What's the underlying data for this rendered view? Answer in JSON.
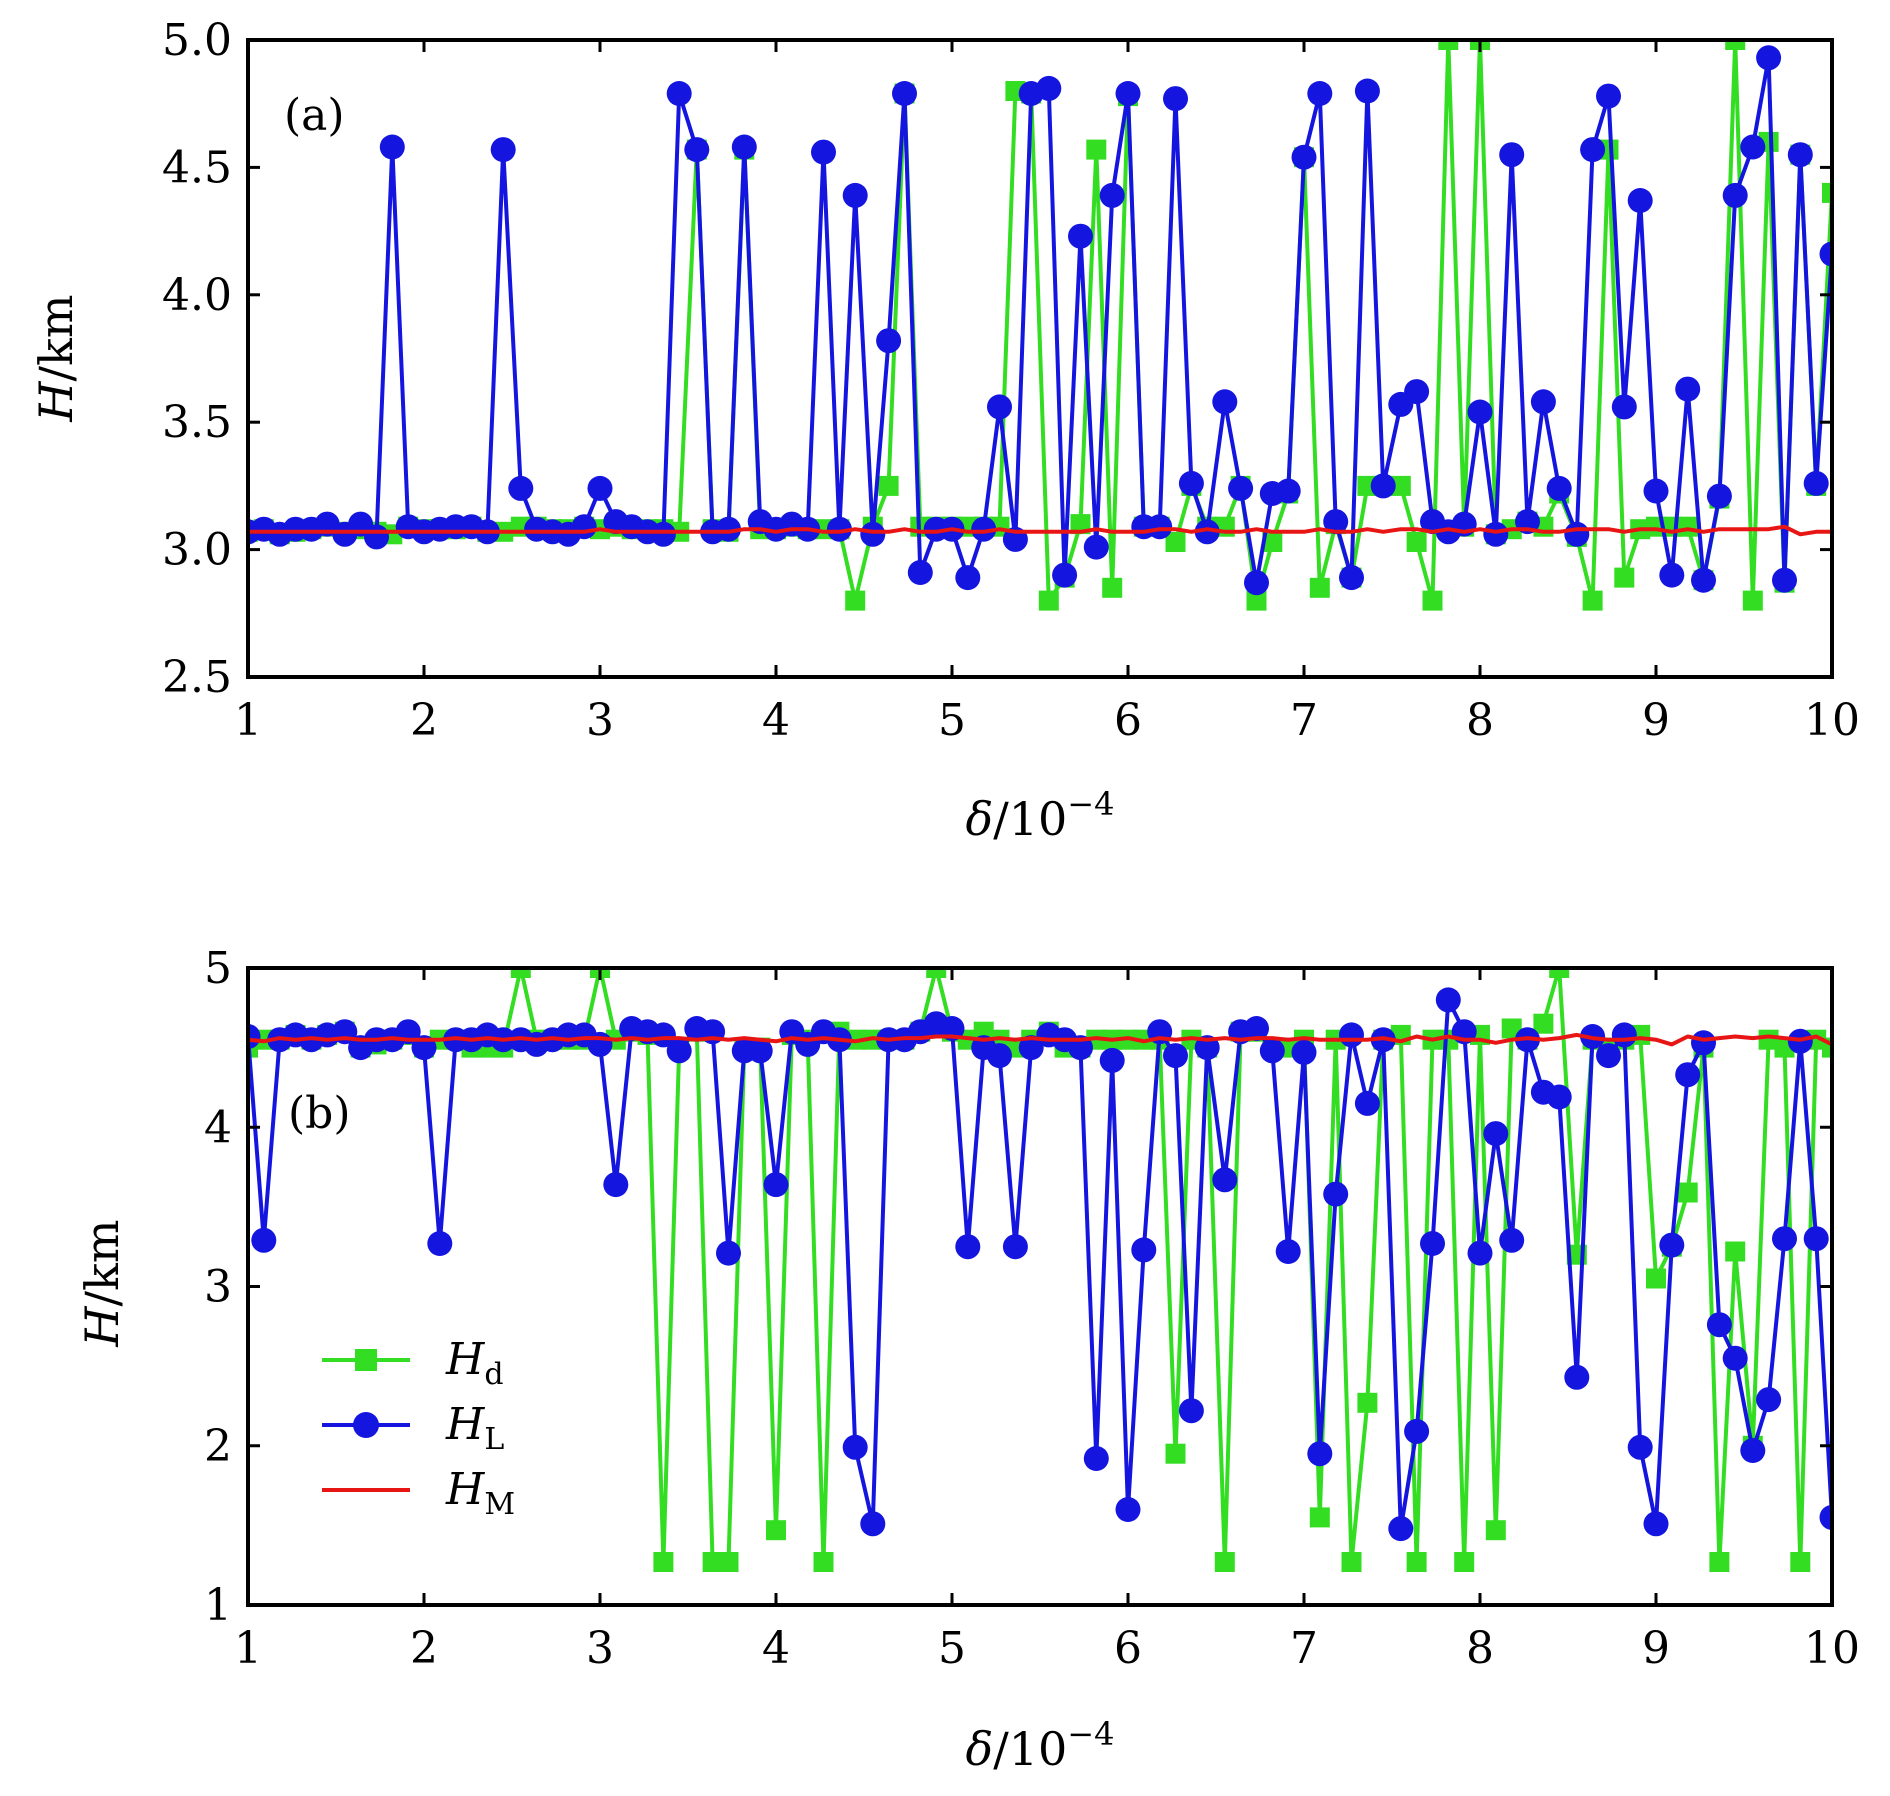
{
  "chart_data": [
    {
      "type": "line",
      "panel_label": "(a)",
      "ylabel": "H/km",
      "xlabel": "δ/10−4",
      "xlim": [
        1,
        10
      ],
      "ylim": [
        2.5,
        5.0
      ],
      "xtick_labels": [
        "1",
        "2",
        "3",
        "4",
        "5",
        "6",
        "7",
        "8",
        "9",
        "10"
      ],
      "ytick_labels": [
        "2.5",
        "3.0",
        "3.5",
        "4.0",
        "4.5",
        "5.0"
      ],
      "ytick_values": [
        2.5,
        3.0,
        3.5,
        4.0,
        4.5,
        5.0
      ],
      "x": [
        1.0,
        1.09,
        1.18,
        1.27,
        1.36,
        1.45,
        1.55,
        1.64,
        1.73,
        1.82,
        1.91,
        2.0,
        2.09,
        2.18,
        2.27,
        2.36,
        2.45,
        2.55,
        2.64,
        2.73,
        2.82,
        2.91,
        3.0,
        3.09,
        3.18,
        3.27,
        3.36,
        3.45,
        3.55,
        3.64,
        3.73,
        3.82,
        3.91,
        4.0,
        4.09,
        4.18,
        4.27,
        4.36,
        4.45,
        4.55,
        4.64,
        4.73,
        4.82,
        4.91,
        5.0,
        5.09,
        5.18,
        5.27,
        5.36,
        5.45,
        5.55,
        5.64,
        5.73,
        5.82,
        5.91,
        6.0,
        6.09,
        6.18,
        6.27,
        6.36,
        6.45,
        6.55,
        6.64,
        6.73,
        6.82,
        6.91,
        7.0,
        7.09,
        7.18,
        7.27,
        7.36,
        7.45,
        7.55,
        7.64,
        7.73,
        7.82,
        7.91,
        8.0,
        8.09,
        8.18,
        8.27,
        8.36,
        8.45,
        8.55,
        8.64,
        8.73,
        8.82,
        8.91,
        9.0,
        9.09,
        9.18,
        9.27,
        9.36,
        9.45,
        9.55,
        9.64,
        9.73,
        9.82,
        9.91,
        10.0
      ],
      "series": [
        {
          "name": "H",
          "subscript": "d",
          "color": "#33dd22",
          "marker": "square",
          "values": [
            3.07,
            3.08,
            3.06,
            3.07,
            3.08,
            3.09,
            3.07,
            3.08,
            3.07,
            3.06,
            3.09,
            3.08,
            3.08,
            3.08,
            3.09,
            3.07,
            3.07,
            3.09,
            3.09,
            3.08,
            3.08,
            3.09,
            3.08,
            3.09,
            3.08,
            3.08,
            3.08,
            3.07,
            4.57,
            3.08,
            3.07,
            4.57,
            3.08,
            3.08,
            3.09,
            3.08,
            3.08,
            3.08,
            2.8,
            3.09,
            3.25,
            4.79,
            3.09,
            3.09,
            3.09,
            3.09,
            3.09,
            3.09,
            4.8,
            4.79,
            2.8,
            2.89,
            3.1,
            4.57,
            2.85,
            4.78,
            3.09,
            3.09,
            3.03,
            3.25,
            3.09,
            3.09,
            3.25,
            2.8,
            3.03,
            3.22,
            4.54,
            2.85,
            3.1,
            2.89,
            3.25,
            3.25,
            3.25,
            3.03,
            2.8,
            5.0,
            3.09,
            5.0,
            3.06,
            3.08,
            3.11,
            3.09,
            3.22,
            3.05,
            2.8,
            4.57,
            2.89,
            3.08,
            3.09,
            3.09,
            3.09,
            2.88,
            3.2,
            5.0,
            2.8,
            4.6,
            2.87,
            4.55,
            3.25,
            4.4
          ]
        },
        {
          "name": "H",
          "subscript": "L",
          "color": "#1515e0",
          "marker": "circle",
          "values": [
            3.07,
            3.08,
            3.06,
            3.08,
            3.08,
            3.1,
            3.06,
            3.1,
            3.05,
            4.58,
            3.09,
            3.07,
            3.08,
            3.09,
            3.09,
            3.07,
            4.57,
            3.24,
            3.08,
            3.07,
            3.06,
            3.09,
            3.24,
            3.11,
            3.09,
            3.07,
            3.06,
            4.79,
            4.57,
            3.07,
            3.08,
            4.58,
            3.11,
            3.08,
            3.1,
            3.08,
            4.56,
            3.08,
            4.39,
            3.06,
            3.82,
            4.79,
            2.91,
            3.08,
            3.08,
            2.89,
            3.08,
            3.56,
            3.04,
            4.79,
            4.81,
            2.9,
            4.23,
            3.01,
            4.39,
            4.79,
            3.09,
            3.09,
            4.77,
            3.26,
            3.07,
            3.58,
            3.24,
            2.87,
            3.22,
            3.23,
            4.54,
            4.79,
            3.11,
            2.89,
            4.8,
            3.25,
            3.57,
            3.62,
            3.11,
            3.07,
            3.1,
            3.54,
            3.06,
            4.55,
            3.11,
            3.58,
            3.24,
            3.06,
            4.57,
            4.78,
            3.56,
            4.37,
            3.23,
            2.9,
            3.63,
            2.88,
            3.21,
            4.39,
            4.58,
            4.93,
            2.88,
            4.55,
            3.26,
            4.16
          ]
        },
        {
          "name": "H",
          "subscript": "M",
          "color": "#e81515",
          "marker": "none",
          "values": [
            3.07,
            3.07,
            3.07,
            3.07,
            3.07,
            3.07,
            3.07,
            3.07,
            3.07,
            3.07,
            3.07,
            3.07,
            3.07,
            3.07,
            3.07,
            3.07,
            3.07,
            3.07,
            3.07,
            3.07,
            3.07,
            3.07,
            3.08,
            3.07,
            3.07,
            3.07,
            3.07,
            3.07,
            3.07,
            3.07,
            3.07,
            3.08,
            3.08,
            3.07,
            3.08,
            3.08,
            3.07,
            3.07,
            3.08,
            3.07,
            3.07,
            3.08,
            3.07,
            3.07,
            3.08,
            3.07,
            3.07,
            3.08,
            3.07,
            3.07,
            3.07,
            3.07,
            3.07,
            3.08,
            3.07,
            3.07,
            3.07,
            3.08,
            3.08,
            3.07,
            3.08,
            3.07,
            3.07,
            3.08,
            3.07,
            3.07,
            3.07,
            3.08,
            3.07,
            3.07,
            3.08,
            3.07,
            3.08,
            3.08,
            3.07,
            3.08,
            3.07,
            3.08,
            3.07,
            3.08,
            3.08,
            3.07,
            3.07,
            3.08,
            3.08,
            3.08,
            3.07,
            3.08,
            3.08,
            3.07,
            3.08,
            3.07,
            3.08,
            3.08,
            3.08,
            3.08,
            3.09,
            3.06,
            3.07,
            3.07
          ]
        }
      ]
    },
    {
      "type": "line",
      "panel_label": "(b)",
      "ylabel": "H/km",
      "xlabel": "δ/10−4",
      "xlim": [
        1,
        10
      ],
      "ylim": [
        1,
        5
      ],
      "xtick_labels": [
        "1",
        "2",
        "3",
        "4",
        "5",
        "6",
        "7",
        "8",
        "9",
        "10"
      ],
      "ytick_labels": [
        "1",
        "2",
        "3",
        "4",
        "5"
      ],
      "ytick_values": [
        1,
        2,
        3,
        4,
        5
      ],
      "legend_position": "lower-left",
      "x": [
        1.0,
        1.09,
        1.18,
        1.27,
        1.36,
        1.45,
        1.55,
        1.64,
        1.73,
        1.82,
        1.91,
        2.0,
        2.09,
        2.18,
        2.27,
        2.36,
        2.45,
        2.55,
        2.64,
        2.73,
        2.82,
        2.91,
        3.0,
        3.09,
        3.18,
        3.27,
        3.36,
        3.45,
        3.55,
        3.64,
        3.73,
        3.82,
        3.91,
        4.0,
        4.09,
        4.18,
        4.27,
        4.36,
        4.45,
        4.55,
        4.64,
        4.73,
        4.82,
        4.91,
        5.0,
        5.09,
        5.18,
        5.27,
        5.36,
        5.45,
        5.55,
        5.64,
        5.73,
        5.82,
        5.91,
        6.0,
        6.09,
        6.18,
        6.27,
        6.36,
        6.45,
        6.55,
        6.64,
        6.73,
        6.82,
        6.91,
        7.0,
        7.09,
        7.18,
        7.27,
        7.36,
        7.45,
        7.55,
        7.64,
        7.73,
        7.82,
        7.91,
        8.0,
        8.09,
        8.18,
        8.27,
        8.36,
        8.45,
        8.55,
        8.64,
        8.73,
        8.82,
        8.91,
        9.0,
        9.09,
        9.18,
        9.27,
        9.36,
        9.45,
        9.55,
        9.64,
        9.73,
        9.82,
        9.91,
        10.0
      ],
      "series": [
        {
          "name": "H",
          "subscript": "d",
          "color": "#33dd22",
          "marker": "square",
          "values": [
            4.5,
            4.55,
            4.55,
            4.58,
            4.55,
            4.58,
            4.6,
            4.5,
            4.52,
            4.55,
            4.58,
            4.5,
            4.55,
            4.55,
            4.5,
            4.5,
            4.5,
            5.0,
            4.55,
            4.55,
            4.55,
            4.55,
            5.0,
            4.55,
            4.6,
            4.58,
            1.27,
            4.5,
            4.6,
            1.27,
            1.27,
            4.5,
            4.5,
            1.47,
            4.58,
            4.55,
            1.27,
            4.6,
            4.55,
            4.55,
            4.55,
            4.55,
            4.6,
            5.0,
            4.6,
            4.55,
            4.6,
            4.55,
            4.5,
            4.55,
            4.6,
            4.5,
            4.5,
            4.55,
            4.55,
            4.55,
            4.55,
            4.55,
            1.95,
            4.55,
            4.5,
            1.27,
            4.6,
            4.6,
            4.5,
            4.5,
            4.55,
            1.55,
            4.55,
            1.27,
            2.27,
            4.55,
            4.58,
            1.27,
            4.55,
            4.55,
            1.27,
            4.58,
            1.47,
            4.62,
            4.55,
            4.65,
            5.0,
            3.2,
            4.55,
            4.5,
            4.55,
            4.58,
            3.05,
            3.25,
            3.59,
            4.5,
            1.27,
            3.22,
            2.0,
            4.55,
            4.5,
            1.27,
            4.55,
            4.5
          ]
        },
        {
          "name": "H",
          "subscript": "L",
          "color": "#1515e0",
          "marker": "circle",
          "values": [
            4.57,
            3.29,
            4.55,
            4.58,
            4.55,
            4.58,
            4.6,
            4.5,
            4.55,
            4.55,
            4.6,
            4.5,
            3.27,
            4.55,
            4.55,
            4.58,
            4.55,
            4.55,
            4.52,
            4.55,
            4.58,
            4.58,
            4.52,
            3.64,
            4.62,
            4.6,
            4.58,
            4.48,
            4.62,
            4.6,
            3.21,
            4.48,
            4.48,
            3.64,
            4.6,
            4.52,
            4.6,
            4.55,
            1.99,
            1.51,
            4.55,
            4.55,
            4.6,
            4.65,
            4.62,
            3.25,
            4.5,
            4.45,
            3.25,
            4.5,
            4.58,
            4.55,
            4.5,
            1.92,
            4.42,
            1.6,
            3.23,
            4.6,
            4.45,
            2.22,
            4.5,
            3.67,
            4.6,
            4.62,
            4.48,
            3.22,
            4.47,
            1.95,
            3.58,
            4.58,
            4.15,
            4.55,
            1.48,
            2.09,
            3.27,
            4.8,
            4.6,
            3.21,
            3.96,
            3.29,
            4.55,
            4.22,
            4.19,
            2.43,
            4.57,
            4.45,
            4.58,
            1.99,
            1.51,
            3.26,
            4.33,
            4.53,
            2.76,
            2.55,
            1.97,
            2.29,
            3.3,
            4.54,
            3.3,
            1.55
          ]
        },
        {
          "name": "H",
          "subscript": "M",
          "color": "#e81515",
          "marker": "none",
          "values": [
            4.55,
            4.54,
            4.56,
            4.55,
            4.56,
            4.55,
            4.56,
            4.55,
            4.55,
            4.56,
            4.55,
            4.55,
            4.55,
            4.56,
            4.55,
            4.56,
            4.55,
            4.56,
            4.55,
            4.56,
            4.55,
            4.56,
            4.56,
            4.55,
            4.56,
            4.55,
            4.56,
            4.56,
            4.55,
            4.56,
            4.55,
            4.56,
            4.55,
            4.54,
            4.56,
            4.55,
            4.56,
            4.55,
            4.54,
            4.56,
            4.55,
            4.56,
            4.56,
            4.57,
            4.57,
            4.56,
            4.55,
            4.56,
            4.55,
            4.56,
            4.55,
            4.55,
            4.55,
            4.56,
            4.55,
            4.56,
            4.54,
            4.56,
            4.55,
            4.56,
            4.55,
            4.56,
            4.55,
            4.56,
            4.56,
            4.55,
            4.56,
            4.55,
            4.55,
            4.55,
            4.55,
            4.56,
            4.54,
            4.57,
            4.55,
            4.57,
            4.55,
            4.55,
            4.53,
            4.55,
            4.56,
            4.55,
            4.56,
            4.58,
            4.56,
            4.55,
            4.55,
            4.56,
            4.55,
            4.52,
            4.57,
            4.55,
            4.56,
            4.57,
            4.56,
            4.57,
            4.56,
            4.55,
            4.57,
            4.52
          ]
        }
      ]
    }
  ]
}
